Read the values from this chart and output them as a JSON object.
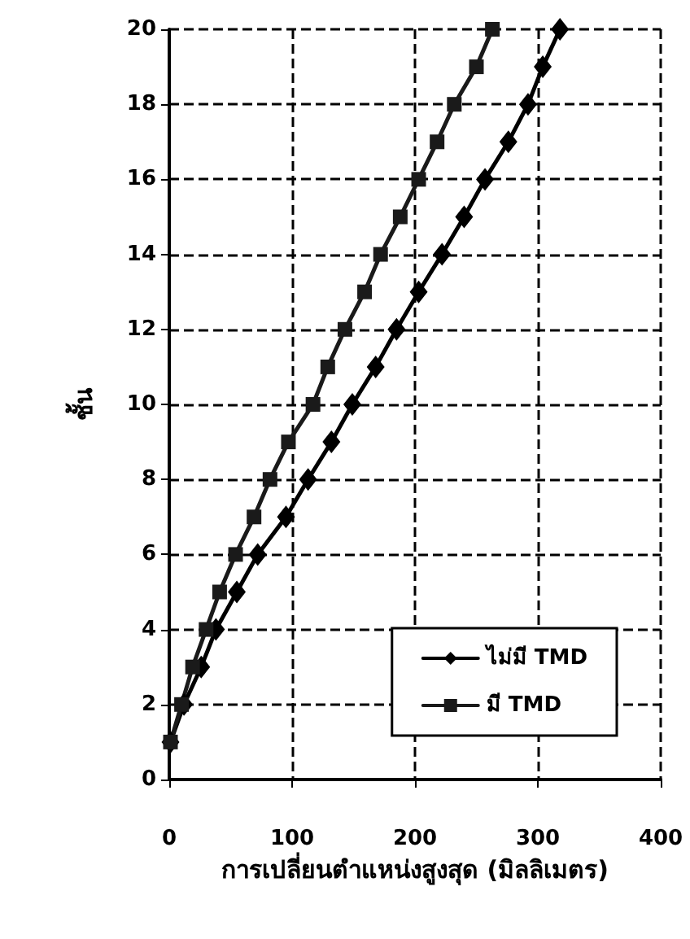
{
  "chart_data": {
    "type": "line",
    "xlabel": "การเปลี่ยนตำแหน่งสูงสุด (มิลลิเมตร)",
    "ylabel": "ชั้น",
    "xlim": [
      0,
      400
    ],
    "xticks": [
      0,
      100,
      200,
      300,
      400
    ],
    "ylim": [
      0,
      20
    ],
    "yticks": [
      0,
      2,
      4,
      6,
      8,
      10,
      12,
      14,
      16,
      18,
      20
    ],
    "grid": true,
    "legend": "bottom right",
    "line_style": "solid",
    "series": [
      {
        "name": "ไม่มี TMD",
        "color": "#000000",
        "marker": "diamond",
        "x": [
          1,
          12,
          26,
          38,
          55,
          72,
          95,
          113,
          132,
          149,
          168,
          185,
          203,
          222,
          240,
          257,
          276,
          292,
          304,
          318
        ],
        "values": [
          1,
          2,
          3,
          4,
          5,
          6,
          7,
          8,
          9,
          10,
          11,
          12,
          13,
          14,
          15,
          16,
          17,
          18,
          19,
          20
        ]
      },
      {
        "name": "มี TMD",
        "color": "#1a1a1a",
        "marker": "square",
        "x": [
          1,
          10,
          19,
          30,
          41,
          54,
          69,
          82,
          97,
          117,
          129,
          143,
          159,
          172,
          188,
          203,
          218,
          232,
          250,
          263
        ],
        "values": [
          1,
          2,
          3,
          4,
          5,
          6,
          7,
          8,
          9,
          10,
          11,
          12,
          13,
          14,
          15,
          16,
          17,
          18,
          19,
          20
        ]
      }
    ]
  }
}
